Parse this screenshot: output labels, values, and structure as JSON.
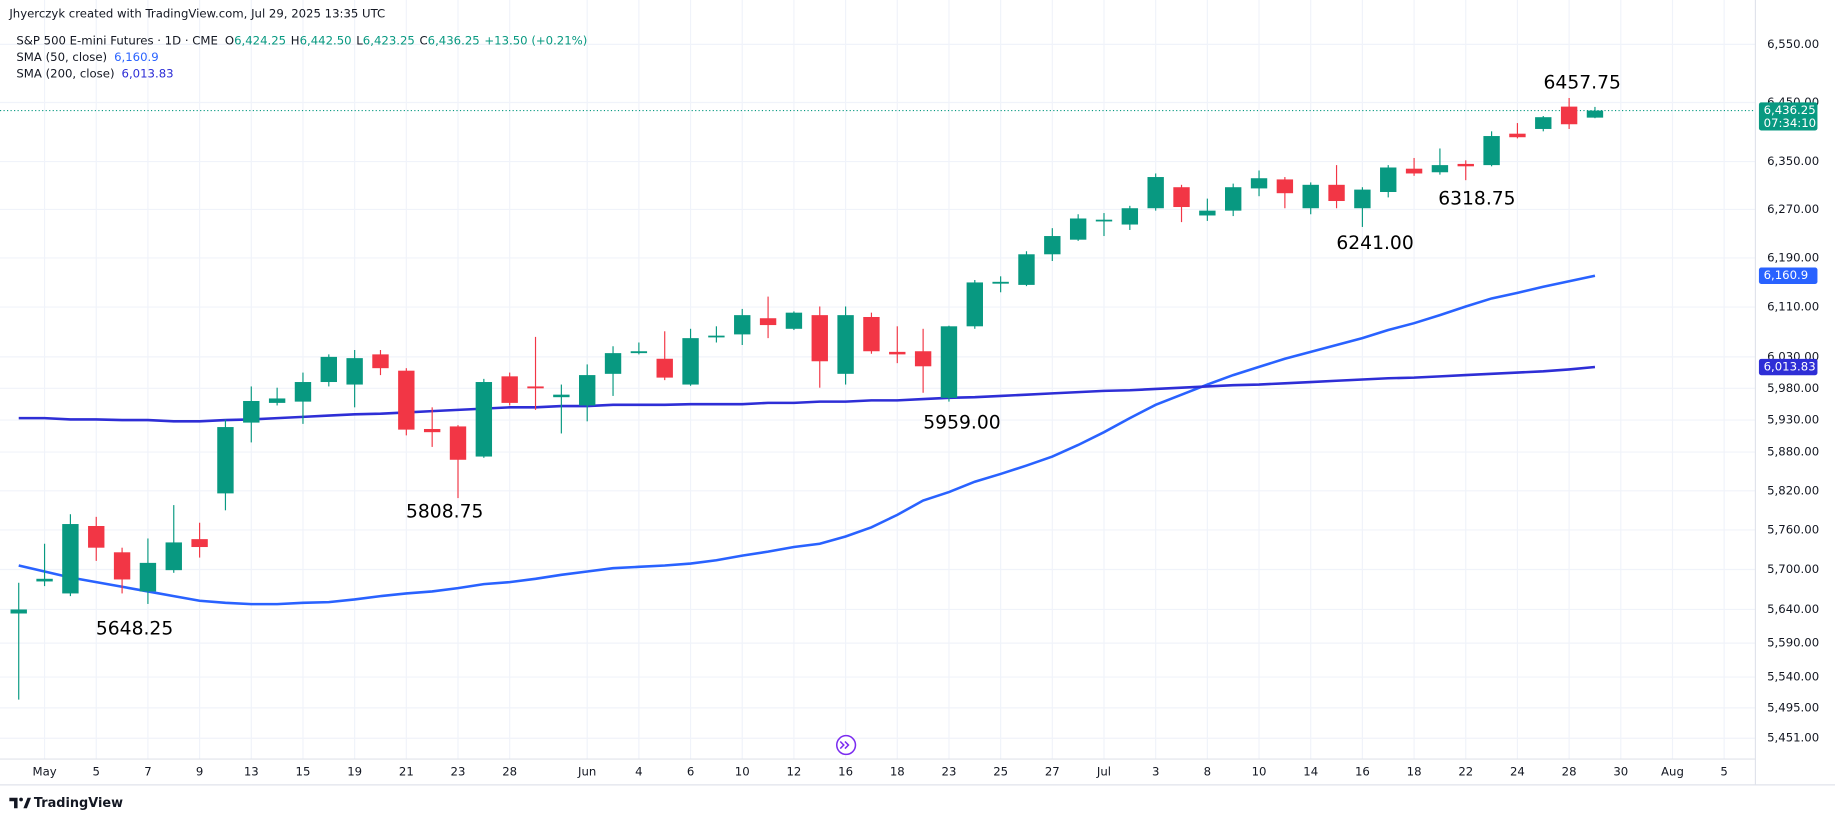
{
  "header": {
    "credit": "Jhyerczyk created with TradingView.com, Jul 29, 2025 13:35 UTC",
    "title": "S&P 500 E-mini Futures · 1D · CME",
    "ohlc": [
      {
        "key": "O",
        "value": "6,424.25"
      },
      {
        "key": "H",
        "value": "6,442.50"
      },
      {
        "key": "L",
        "value": "6,423.25"
      },
      {
        "key": "C",
        "value": "6,436.25"
      }
    ],
    "change": "+13.50 (+0.21%)"
  },
  "footer": {
    "brand": "TradingView"
  },
  "chart_data": {
    "type": "candlestick",
    "log_scale": true,
    "grid": true,
    "categories": [
      null,
      "May",
      null,
      "5",
      null,
      "7",
      null,
      "9",
      null,
      "13",
      null,
      "15",
      null,
      "19",
      null,
      "21",
      null,
      "23",
      null,
      "28",
      null,
      null,
      "Jun",
      null,
      "4",
      null,
      "6",
      null,
      "10",
      null,
      "12",
      null,
      "16",
      null,
      "18",
      null,
      "23",
      null,
      "25",
      null,
      "27",
      null,
      "Jul",
      null,
      "3",
      null,
      "8",
      null,
      "10",
      null,
      "14",
      null,
      "16",
      null,
      "18",
      null,
      "22",
      null,
      "24",
      null,
      "28",
      null,
      "30",
      null,
      "Aug",
      null,
      "5"
    ],
    "candles": {
      "up_color": "#089981",
      "down_color": "#f23645",
      "open": [
        5634,
        5682,
        5664,
        5766,
        5726,
        5667,
        5699,
        5746,
        5816,
        5926,
        5957,
        5959,
        5990,
        5986,
        6034,
        6008,
        5916,
        5920,
        5873,
        5999,
        5983,
        5966,
        5953,
        6003,
        6036,
        6027,
        5986,
        6062,
        6066,
        6092,
        6075,
        6097,
        6003,
        6094,
        6038,
        6039,
        5965,
        6079,
        6148,
        6146,
        6196,
        6220,
        6251,
        6245,
        6272,
        6307,
        6260,
        6268,
        6305,
        6320,
        6272,
        6311,
        6272,
        6299,
        6338,
        6332,
        6346,
        6344,
        6397,
        6405,
        6443,
        6424.25,
        null,
        null,
        null,
        null,
        null
      ],
      "high": [
        5680,
        5739,
        5784,
        5780,
        5733,
        5747,
        5798,
        5771,
        5931,
        5983,
        5981,
        6005,
        6034,
        6041,
        6041,
        6012,
        5950,
        5922,
        5995,
        6005,
        6062,
        5986,
        6018,
        6047,
        6053,
        6071,
        6075,
        6079,
        6107,
        6127,
        6103,
        6111,
        6111,
        6101,
        6079,
        6075,
        6080,
        6154,
        6160,
        6201,
        6239,
        6262,
        6264,
        6276,
        6330,
        6311,
        6288,
        6313,
        6335,
        6324,
        6315,
        6344,
        6307,
        6344,
        6356,
        6372,
        6352,
        6401,
        6415,
        6427,
        6457.75,
        6442.5,
        null,
        null,
        null,
        null,
        null
      ],
      "low": [
        5507,
        5675,
        5660,
        5713,
        5664,
        5648.25,
        5695,
        5718,
        5790,
        5895,
        5953,
        5924,
        5983,
        5950,
        6001,
        5906,
        5888,
        5808.75,
        5871,
        5953,
        5946,
        5909,
        5928,
        5968,
        6034,
        5993,
        5984,
        6053,
        6049,
        6060,
        6073,
        5981,
        5986,
        6035,
        6020,
        5973,
        5959,
        6075,
        6134,
        6144,
        6185,
        6218,
        6226,
        6236,
        6268,
        6249,
        6251,
        6259,
        6292,
        6272,
        6262,
        6272,
        6241,
        6290,
        6326,
        6328,
        6318.75,
        6342,
        6389,
        6401,
        6405,
        6423.25,
        null,
        null,
        null,
        null,
        null
      ],
      "close": [
        5640,
        5686,
        5769,
        5733,
        5685,
        5710,
        5741,
        5734,
        5919,
        5960,
        5964,
        5990,
        6030,
        6028,
        6012,
        5915,
        5911,
        5868,
        5990,
        5957,
        5980,
        5970,
        6001,
        6036,
        6039,
        5997,
        6060,
        6064,
        6097,
        6081,
        6101,
        6023,
        6097,
        6039,
        6034,
        6015,
        6079,
        6150,
        6151,
        6196,
        6226,
        6255,
        6253,
        6272,
        6324,
        6274,
        6268,
        6307,
        6322,
        6297,
        6311,
        6284,
        6303,
        6340,
        6330,
        6344,
        6342,
        6393,
        6391,
        6425,
        6413,
        6436.25,
        null,
        null,
        null,
        null,
        null
      ]
    },
    "last_price": {
      "label": "6,436.25",
      "countdown": "07:34:10",
      "color": "#089981"
    },
    "series": [
      {
        "name": "SMA (50, close)",
        "last_label": "6,160.9",
        "color": "#2962ff",
        "values": [
          5706,
          5697,
          5688,
          5681,
          5674,
          5667,
          5660,
          5653,
          5650,
          5648,
          5648,
          5650,
          5651,
          5655,
          5660,
          5664,
          5667,
          5672,
          5678,
          5681,
          5686,
          5692,
          5697,
          5702,
          5704,
          5706,
          5709,
          5714,
          5721,
          5727,
          5734,
          5739,
          5750,
          5764,
          5783,
          5805,
          5818,
          5834,
          5846,
          5859,
          5873,
          5891,
          5911,
          5933,
          5954,
          5970,
          5986,
          6001,
          6014,
          6027,
          6038,
          6049,
          6060,
          6073,
          6084,
          6097,
          6111,
          6124,
          6133,
          6143,
          6152,
          6160.9,
          null,
          null,
          null,
          null,
          null
        ]
      },
      {
        "name": "SMA (200, close)",
        "last_label": "6,013.83",
        "color": "#2e2ed6",
        "values": [
          5933,
          5933,
          5931,
          5931,
          5930,
          5930,
          5928,
          5928,
          5930,
          5931,
          5933,
          5935,
          5937,
          5939,
          5940,
          5942,
          5944,
          5946,
          5948,
          5950,
          5950,
          5952,
          5952,
          5954,
          5954,
          5954,
          5955,
          5955,
          5955,
          5957,
          5957,
          5959,
          5959,
          5961,
          5961,
          5963,
          5965,
          5966,
          5968,
          5970,
          5972,
          5974,
          5976,
          5977,
          5979,
          5981,
          5983,
          5985,
          5986,
          5988,
          5990,
          5992,
          5994,
          5996,
          5997,
          5999,
          6001,
          6003,
          6005,
          6007,
          6010,
          6013.83,
          null,
          null,
          null,
          null,
          null
        ]
      }
    ],
    "ylim": [
      5421,
      6611
    ],
    "yticks": [
      {
        "value": 6550,
        "label": "6,550.00"
      },
      {
        "value": 6450,
        "label": "6,450.00"
      },
      {
        "value": 6350,
        "label": "6,350.00"
      },
      {
        "value": 6270,
        "label": "6,270.00"
      },
      {
        "value": 6190,
        "label": "6,190.00"
      },
      {
        "value": 6110,
        "label": "6,110.00"
      },
      {
        "value": 6030,
        "label": "6,030.00"
      },
      {
        "value": 5980,
        "label": "5,980.00"
      },
      {
        "value": 5930,
        "label": "5,930.00"
      },
      {
        "value": 5880,
        "label": "5,880.00"
      },
      {
        "value": 5820,
        "label": "5,820.00"
      },
      {
        "value": 5760,
        "label": "5,760.00"
      },
      {
        "value": 5700,
        "label": "5,700.00"
      },
      {
        "value": 5640,
        "label": "5,640.00"
      },
      {
        "value": 5590,
        "label": "5,590.00"
      },
      {
        "value": 5540,
        "label": "5,540.00"
      },
      {
        "value": 5495,
        "label": "5,495.00"
      },
      {
        "value": 5451,
        "label": "5,451.00"
      }
    ],
    "annotations": [
      "6457.75",
      "6318.75",
      "6241.00",
      "5959.00",
      "5808.75",
      "5648.25"
    ]
  }
}
